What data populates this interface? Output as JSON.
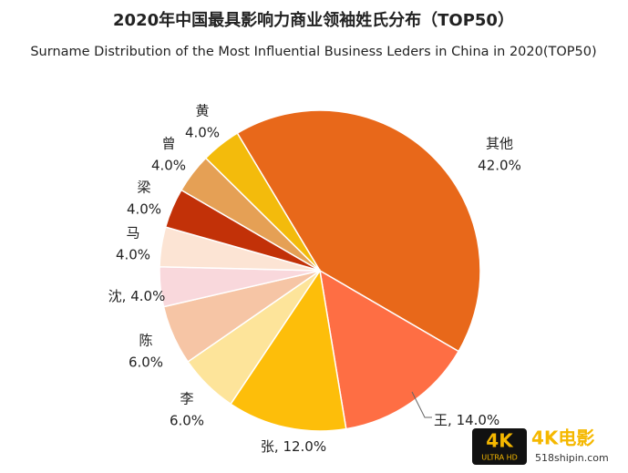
{
  "chart_data": {
    "type": "pie",
    "title": "2020年中国最具影响力商业领袖姓氏分布（TOP50）",
    "subtitle": "Surname Distribution of the Most Influential Business Leders in China in 2020(TOP50)",
    "categories": [
      "其他",
      "王",
      "张",
      "李",
      "陈",
      "沈",
      "马",
      "梁",
      "曾",
      "黄"
    ],
    "values": [
      42,
      14,
      12,
      6,
      6,
      4,
      4,
      4,
      4,
      4
    ],
    "value_labels": [
      "42.0%",
      "14.0%",
      "12.0%",
      "6.0%",
      "6.0%",
      "4.0%",
      "4.0%",
      "4.0%",
      "4.0%",
      "4.0%"
    ],
    "label_separator": ", ",
    "colors": [
      "#e8681a",
      "#fe6e44",
      "#fdbe0a",
      "#fde49a",
      "#f6c5a5",
      "#f9d8dc",
      "#fce4d4",
      "#c23108",
      "#e5a055",
      "#f3bb0c"
    ]
  },
  "watermark": {
    "brand": "4K电影",
    "badge": "4K",
    "badge_sub": "ULTRA HD",
    "url": "518shipin.com"
  }
}
